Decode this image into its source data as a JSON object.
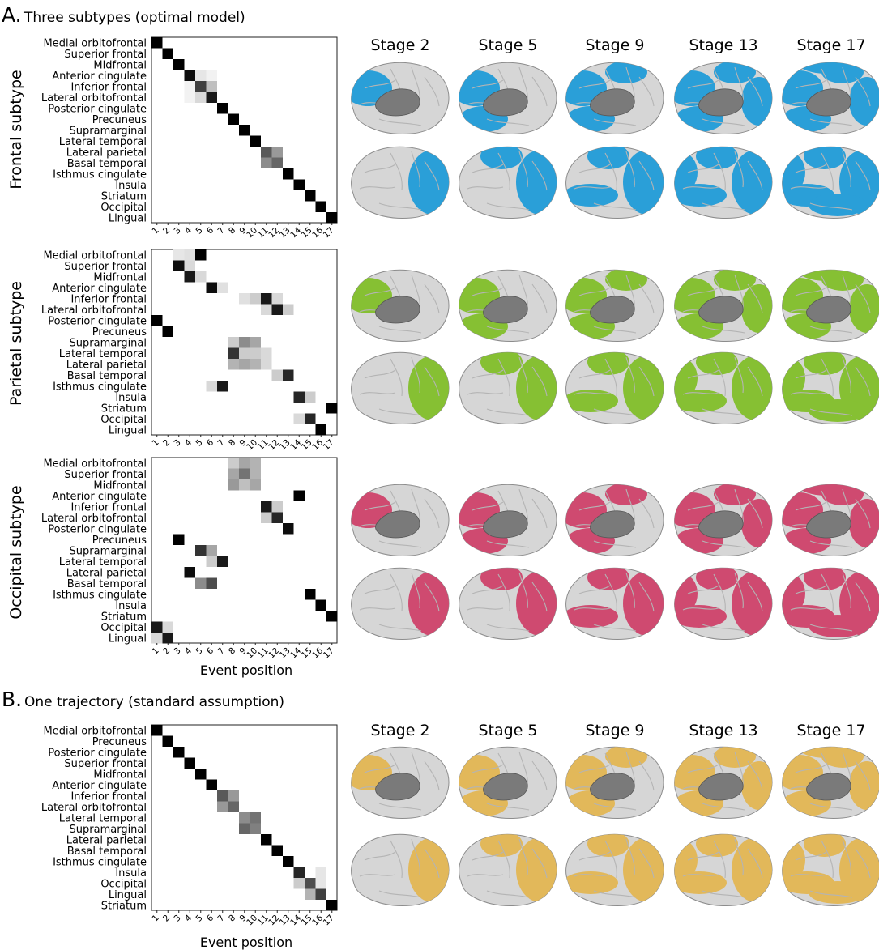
{
  "section_a": {
    "letter": "A.",
    "title": "Three subtypes (optimal model)"
  },
  "section_b": {
    "letter": "B.",
    "title": "One trajectory (standard assumption)"
  },
  "stage_labels": [
    "Stage 2",
    "Stage 5",
    "Stage 9",
    "Stage 13",
    "Stage 17"
  ],
  "event_positions": [
    "1",
    "2",
    "3",
    "4",
    "5",
    "6",
    "7",
    "8",
    "9",
    "10",
    "11",
    "12",
    "13",
    "14",
    "15",
    "16",
    "17"
  ],
  "xlabel": "Event position",
  "colors": {
    "frontal": "#2a9fd8",
    "parietal": "#86c033",
    "occipital": "#cf4a70",
    "standard": "#e2b85a",
    "cortex": "#d6d6d6",
    "subcortex": "#7a7a7a"
  },
  "chart_data": [
    {
      "type": "heatmap",
      "id": "frontal",
      "ylabel": "Frontal subtype",
      "color": "#2a9fd8",
      "rows": [
        "Medial orbitofrontal",
        "Superior frontal",
        "Midfrontal",
        "Anterior cingulate",
        "Inferior frontal",
        "Lateral orbitofrontal",
        "Posterior cingulate",
        "Precuneus",
        "Supramarginal",
        "Lateral temporal",
        "Lateral parietal",
        "Basal temporal",
        "Isthmus cingulate",
        "Insula",
        "Striatum",
        "Occipital",
        "Lingual"
      ],
      "cells": [
        [
          0,
          0,
          1
        ],
        [
          1,
          1,
          1
        ],
        [
          2,
          2,
          1
        ],
        [
          3,
          3,
          0.95
        ],
        [
          3,
          4,
          0.1
        ],
        [
          3,
          5,
          0.05
        ],
        [
          4,
          4,
          0.75
        ],
        [
          4,
          5,
          0.25
        ],
        [
          4,
          3,
          0.05
        ],
        [
          5,
          5,
          0.9
        ],
        [
          5,
          4,
          0.15
        ],
        [
          5,
          3,
          0.05
        ],
        [
          6,
          6,
          1
        ],
        [
          7,
          7,
          1
        ],
        [
          8,
          8,
          1
        ],
        [
          9,
          9,
          1
        ],
        [
          10,
          10,
          0.65
        ],
        [
          10,
          11,
          0.4
        ],
        [
          11,
          10,
          0.45
        ],
        [
          11,
          11,
          0.6
        ],
        [
          12,
          12,
          1
        ],
        [
          13,
          13,
          1
        ],
        [
          14,
          14,
          1
        ],
        [
          15,
          15,
          1
        ],
        [
          16,
          16,
          1
        ]
      ]
    },
    {
      "type": "heatmap",
      "id": "parietal",
      "ylabel": "Parietal subtype",
      "color": "#86c033",
      "rows": [
        "Medial orbitofrontal",
        "Superior frontal",
        "Midfrontal",
        "Anterior cingulate",
        "Inferior frontal",
        "Lateral orbitofrontal",
        "Posterior cingulate",
        "Precuneus",
        "Supramarginal",
        "Lateral temporal",
        "Lateral parietal",
        "Basal temporal",
        "Isthmus cingulate",
        "Insula",
        "Striatum",
        "Occipital",
        "Lingual"
      ],
      "cells": [
        [
          0,
          2,
          0.1
        ],
        [
          0,
          3,
          0.12
        ],
        [
          0,
          4,
          1
        ],
        [
          1,
          2,
          0.95
        ],
        [
          1,
          3,
          0.15
        ],
        [
          2,
          3,
          0.9
        ],
        [
          2,
          4,
          0.15
        ],
        [
          3,
          5,
          0.95
        ],
        [
          3,
          6,
          0.12
        ],
        [
          4,
          8,
          0.12
        ],
        [
          4,
          9,
          0.2
        ],
        [
          4,
          10,
          0.9
        ],
        [
          4,
          11,
          0.15
        ],
        [
          5,
          10,
          0.15
        ],
        [
          5,
          11,
          0.9
        ],
        [
          5,
          12,
          0.2
        ],
        [
          6,
          0,
          1
        ],
        [
          7,
          1,
          1
        ],
        [
          8,
          7,
          0.2
        ],
        [
          8,
          8,
          0.45
        ],
        [
          8,
          9,
          0.35
        ],
        [
          9,
          7,
          0.8
        ],
        [
          9,
          8,
          0.2
        ],
        [
          9,
          9,
          0.2
        ],
        [
          9,
          10,
          0.15
        ],
        [
          10,
          7,
          0.3
        ],
        [
          10,
          8,
          0.35
        ],
        [
          10,
          9,
          0.3
        ],
        [
          10,
          10,
          0.15
        ],
        [
          11,
          11,
          0.2
        ],
        [
          11,
          12,
          0.85
        ],
        [
          12,
          5,
          0.15
        ],
        [
          12,
          6,
          0.9
        ],
        [
          13,
          13,
          0.85
        ],
        [
          13,
          14,
          0.2
        ],
        [
          14,
          16,
          1
        ],
        [
          15,
          13,
          0.15
        ],
        [
          15,
          14,
          0.85
        ],
        [
          16,
          15,
          1
        ]
      ]
    },
    {
      "type": "heatmap",
      "id": "occipital",
      "ylabel": "Occipital subtype",
      "color": "#cf4a70",
      "rows": [
        "Medial orbitofrontal",
        "Superior frontal",
        "Midfrontal",
        "Anterior cingulate",
        "Inferior frontal",
        "Lateral orbitofrontal",
        "Posterior cingulate",
        "Precuneus",
        "Supramarginal",
        "Lateral temporal",
        "Lateral parietal",
        "Basal temporal",
        "Isthmus cingulate",
        "Insula",
        "Striatum",
        "Occipital",
        "Lingual"
      ],
      "cells": [
        [
          0,
          7,
          0.2
        ],
        [
          0,
          8,
          0.35
        ],
        [
          0,
          9,
          0.3
        ],
        [
          1,
          7,
          0.35
        ],
        [
          1,
          8,
          0.55
        ],
        [
          1,
          9,
          0.3
        ],
        [
          2,
          7,
          0.4
        ],
        [
          2,
          8,
          0.25
        ],
        [
          2,
          9,
          0.35
        ],
        [
          3,
          13,
          1
        ],
        [
          4,
          10,
          0.9
        ],
        [
          4,
          11,
          0.2
        ],
        [
          5,
          10,
          0.2
        ],
        [
          5,
          11,
          0.85
        ],
        [
          6,
          12,
          0.95
        ],
        [
          7,
          2,
          1
        ],
        [
          8,
          4,
          0.8
        ],
        [
          8,
          5,
          0.35
        ],
        [
          9,
          5,
          0.2
        ],
        [
          9,
          6,
          0.9
        ],
        [
          10,
          3,
          0.95
        ],
        [
          11,
          4,
          0.45
        ],
        [
          11,
          5,
          0.7
        ],
        [
          12,
          14,
          1
        ],
        [
          13,
          15,
          1
        ],
        [
          14,
          16,
          1
        ],
        [
          15,
          0,
          0.9
        ],
        [
          15,
          1,
          0.15
        ],
        [
          16,
          0,
          0.15
        ],
        [
          16,
          1,
          0.9
        ]
      ]
    },
    {
      "type": "heatmap",
      "id": "standard",
      "ylabel": "",
      "color": "#e2b85a",
      "rows": [
        "Medial orbitofrontal",
        "Precuneus",
        "Posterior cingulate",
        "Superior frontal",
        "Midfrontal",
        "Anterior cingulate",
        "Inferior frontal",
        "Lateral orbitofrontal",
        "Lateral temporal",
        "Supramarginal",
        "Lateral parietal",
        "Basal temporal",
        "Isthmus cingulate",
        "Insula",
        "Occipital",
        "Lingual",
        "Striatum"
      ],
      "cells": [
        [
          0,
          0,
          1
        ],
        [
          1,
          1,
          1
        ],
        [
          2,
          2,
          1
        ],
        [
          3,
          3,
          1
        ],
        [
          4,
          4,
          1
        ],
        [
          5,
          5,
          1
        ],
        [
          6,
          6,
          0.65
        ],
        [
          6,
          7,
          0.4
        ],
        [
          7,
          6,
          0.4
        ],
        [
          7,
          7,
          0.6
        ],
        [
          8,
          8,
          0.45
        ],
        [
          8,
          9,
          0.55
        ],
        [
          9,
          8,
          0.6
        ],
        [
          9,
          9,
          0.5
        ],
        [
          10,
          10,
          1
        ],
        [
          11,
          11,
          1
        ],
        [
          12,
          12,
          1
        ],
        [
          13,
          13,
          0.85
        ],
        [
          13,
          15,
          0.1
        ],
        [
          14,
          13,
          0.2
        ],
        [
          14,
          14,
          0.7
        ],
        [
          14,
          15,
          0.1
        ],
        [
          15,
          14,
          0.3
        ],
        [
          15,
          15,
          0.75
        ],
        [
          16,
          16,
          1
        ]
      ]
    }
  ]
}
